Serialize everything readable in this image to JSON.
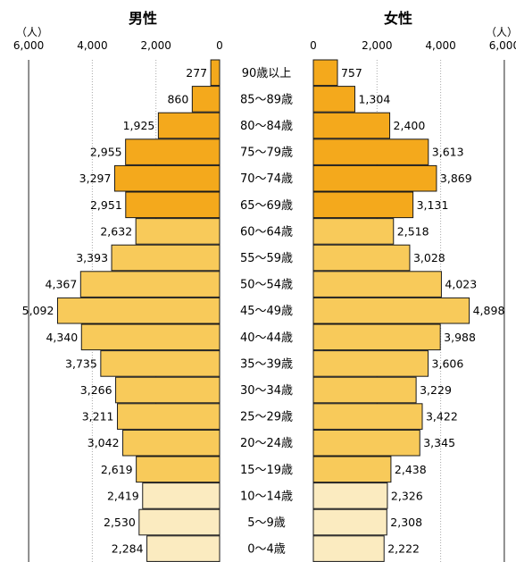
{
  "chart_data": {
    "type": "population-pyramid",
    "left_title": "男性",
    "right_title": "女性",
    "unit_label": "（人）",
    "left_ticks": [
      "6,000",
      "4,000",
      "2,000",
      "0"
    ],
    "right_ticks": [
      "0",
      "2,000",
      "4,000",
      "6,000"
    ],
    "xlim": [
      0,
      6000
    ],
    "grid": true,
    "categories": [
      "90歳以上",
      "85〜89歳",
      "80〜84歳",
      "75〜79歳",
      "70〜74歳",
      "65〜69歳",
      "60〜64歳",
      "55〜59歳",
      "50〜54歳",
      "45〜49歳",
      "40〜44歳",
      "35〜39歳",
      "30〜34歳",
      "25〜29歳",
      "20〜24歳",
      "15〜19歳",
      "10〜14歳",
      "5〜9歳",
      "0〜4歳"
    ],
    "series": [
      {
        "name": "男性",
        "values": [
          277,
          860,
          1925,
          2955,
          3297,
          2951,
          2632,
          3393,
          4367,
          5092,
          4340,
          3735,
          3266,
          3211,
          3042,
          2619,
          2419,
          2530,
          2284
        ],
        "labels": [
          "277",
          "860",
          "1,925",
          "2,955",
          "3,297",
          "2,951",
          "2,632",
          "3,393",
          "4,367",
          "5,092",
          "4,340",
          "3,735",
          "3,266",
          "3,211",
          "3,042",
          "2,619",
          "2,419",
          "2,530",
          "2,284"
        ]
      },
      {
        "name": "女性",
        "values": [
          757,
          1304,
          2400,
          3613,
          3869,
          3131,
          2518,
          3028,
          4023,
          4898,
          3988,
          3606,
          3229,
          3422,
          3345,
          2438,
          2326,
          2308,
          2222
        ],
        "labels": [
          "757",
          "1,304",
          "2,400",
          "3,613",
          "3,869",
          "3,131",
          "2,518",
          "3,028",
          "4,023",
          "4,898",
          "3,988",
          "3,606",
          "3,229",
          "3,422",
          "3,345",
          "2,438",
          "2,326",
          "2,308",
          "2,222"
        ]
      }
    ],
    "colors": {
      "age_65_plus": "#F4A91C",
      "age_15_64": "#F8CA5A",
      "age_0_14": "#FBEBC0",
      "bar_border": "#1a1a1a",
      "grid": "#aaaaaa"
    }
  }
}
